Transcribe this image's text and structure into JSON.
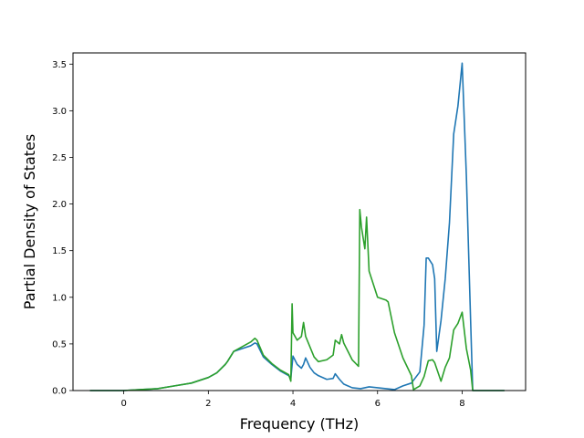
{
  "chart_data": {
    "type": "line",
    "xlabel": "Frequency (THz)",
    "ylabel": "Partial Density of States",
    "xlim": [
      -1.2,
      9.5
    ],
    "ylim": [
      0,
      3.62
    ],
    "xticks": [
      0,
      2,
      4,
      6,
      8
    ],
    "xtick_labels": [
      "0",
      "2",
      "4",
      "6",
      "8"
    ],
    "yticks": [
      0.0,
      0.5,
      1.0,
      1.5,
      2.0,
      2.5,
      3.0,
      3.5
    ],
    "ytick_labels": [
      "0.0",
      "0.5",
      "1.0",
      "1.5",
      "2.0",
      "2.5",
      "3.0",
      "3.5"
    ],
    "grid": false,
    "legend": "none",
    "series": [
      {
        "color": "#1f77b4",
        "x": [
          -0.8,
          -0.4,
          0,
          0.4,
          0.8,
          1.2,
          1.6,
          2.0,
          2.2,
          2.4,
          2.45,
          2.6,
          2.8,
          3.0,
          3.1,
          3.15,
          3.3,
          3.5,
          3.7,
          3.9,
          3.95,
          4.0,
          4.1,
          4.2,
          4.25,
          4.3,
          4.4,
          4.5,
          4.6,
          4.8,
          4.95,
          5.0,
          5.1,
          5.2,
          5.4,
          5.6,
          5.8,
          6.0,
          6.2,
          6.4,
          6.6,
          6.8,
          7.0,
          7.1,
          7.15,
          7.2,
          7.3,
          7.35,
          7.4,
          7.5,
          7.6,
          7.7,
          7.8,
          7.9,
          8.0,
          8.1,
          8.2,
          8.25,
          8.4,
          8.6,
          9.0
        ],
        "y": [
          0,
          0,
          0,
          0.01,
          0.02,
          0.05,
          0.08,
          0.14,
          0.19,
          0.28,
          0.31,
          0.42,
          0.45,
          0.48,
          0.51,
          0.5,
          0.36,
          0.28,
          0.21,
          0.16,
          0.13,
          0.37,
          0.28,
          0.24,
          0.28,
          0.35,
          0.25,
          0.19,
          0.16,
          0.12,
          0.13,
          0.18,
          0.12,
          0.07,
          0.03,
          0.02,
          0.04,
          0.03,
          0.02,
          0.01,
          0.05,
          0.08,
          0.2,
          0.7,
          1.42,
          1.42,
          1.35,
          1.2,
          0.42,
          0.75,
          1.2,
          1.8,
          2.75,
          3.05,
          3.51,
          2.3,
          0.75,
          0,
          0,
          0,
          0
        ]
      },
      {
        "color": "#2ca02c",
        "x": [
          -0.8,
          -0.4,
          0,
          0.4,
          0.8,
          1.2,
          1.6,
          2.0,
          2.2,
          2.4,
          2.45,
          2.6,
          2.8,
          3.0,
          3.1,
          3.15,
          3.3,
          3.5,
          3.7,
          3.9,
          3.95,
          3.98,
          4.0,
          4.1,
          4.2,
          4.25,
          4.3,
          4.4,
          4.5,
          4.6,
          4.8,
          4.95,
          5.0,
          5.1,
          5.15,
          5.2,
          5.4,
          5.55,
          5.58,
          5.62,
          5.7,
          5.74,
          5.8,
          6.0,
          6.2,
          6.25,
          6.4,
          6.6,
          6.8,
          6.85,
          7.0,
          7.1,
          7.2,
          7.3,
          7.35,
          7.5,
          7.6,
          7.7,
          7.8,
          7.9,
          8.0,
          8.1,
          8.2,
          8.25,
          8.4,
          8.6,
          9.0
        ],
        "y": [
          0,
          0,
          0,
          0.01,
          0.02,
          0.05,
          0.08,
          0.14,
          0.19,
          0.28,
          0.31,
          0.42,
          0.47,
          0.52,
          0.56,
          0.54,
          0.38,
          0.29,
          0.22,
          0.17,
          0.1,
          0.93,
          0.62,
          0.54,
          0.58,
          0.73,
          0.58,
          0.47,
          0.36,
          0.31,
          0.33,
          0.38,
          0.54,
          0.5,
          0.6,
          0.51,
          0.33,
          0.26,
          1.94,
          1.75,
          1.52,
          1.86,
          1.28,
          1.0,
          0.97,
          0.95,
          0.62,
          0.35,
          0.16,
          0.01,
          0.05,
          0.15,
          0.32,
          0.33,
          0.3,
          0.1,
          0.25,
          0.35,
          0.65,
          0.72,
          0.84,
          0.45,
          0.22,
          0,
          0,
          0,
          0
        ]
      }
    ]
  }
}
